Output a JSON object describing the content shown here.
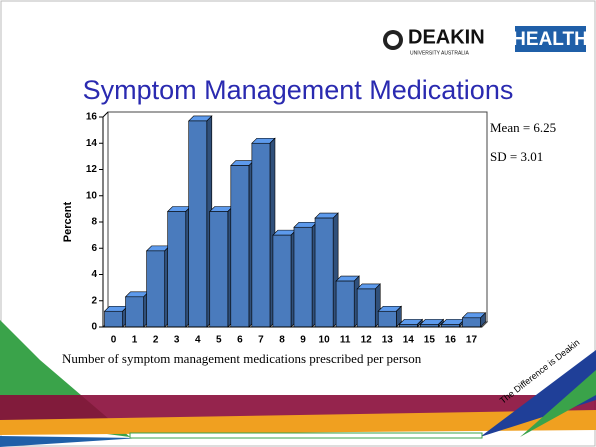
{
  "logo": {
    "name": "DEAKIN",
    "unit": "HEALTH",
    "sub": "UNIVERSITY AUSTRALIA"
  },
  "tagline": "The Difference is Deakin",
  "chart_data": {
    "type": "bar",
    "title": "Symptom Management Medications",
    "ylabel": "Percent",
    "xlabel": "Number of symptom management medications prescribed per person",
    "annotations": [
      "Mean = 6.25",
      "SD = 3.01"
    ],
    "categories": [
      "0",
      "1",
      "2",
      "3",
      "4",
      "5",
      "6",
      "7",
      "8",
      "9",
      "10",
      "11",
      "12",
      "13",
      "14",
      "15",
      "16",
      "17"
    ],
    "values": [
      1.2,
      2.3,
      5.8,
      8.8,
      15.7,
      8.8,
      12.3,
      14.0,
      7.0,
      7.6,
      8.3,
      3.5,
      2.9,
      1.2,
      0.2,
      0.2,
      0.2,
      0.7
    ],
    "color": "#4a7bbd",
    "ylim": [
      0,
      16
    ],
    "yticks": [
      0,
      2,
      4,
      6,
      8,
      10,
      12,
      14,
      16
    ]
  }
}
